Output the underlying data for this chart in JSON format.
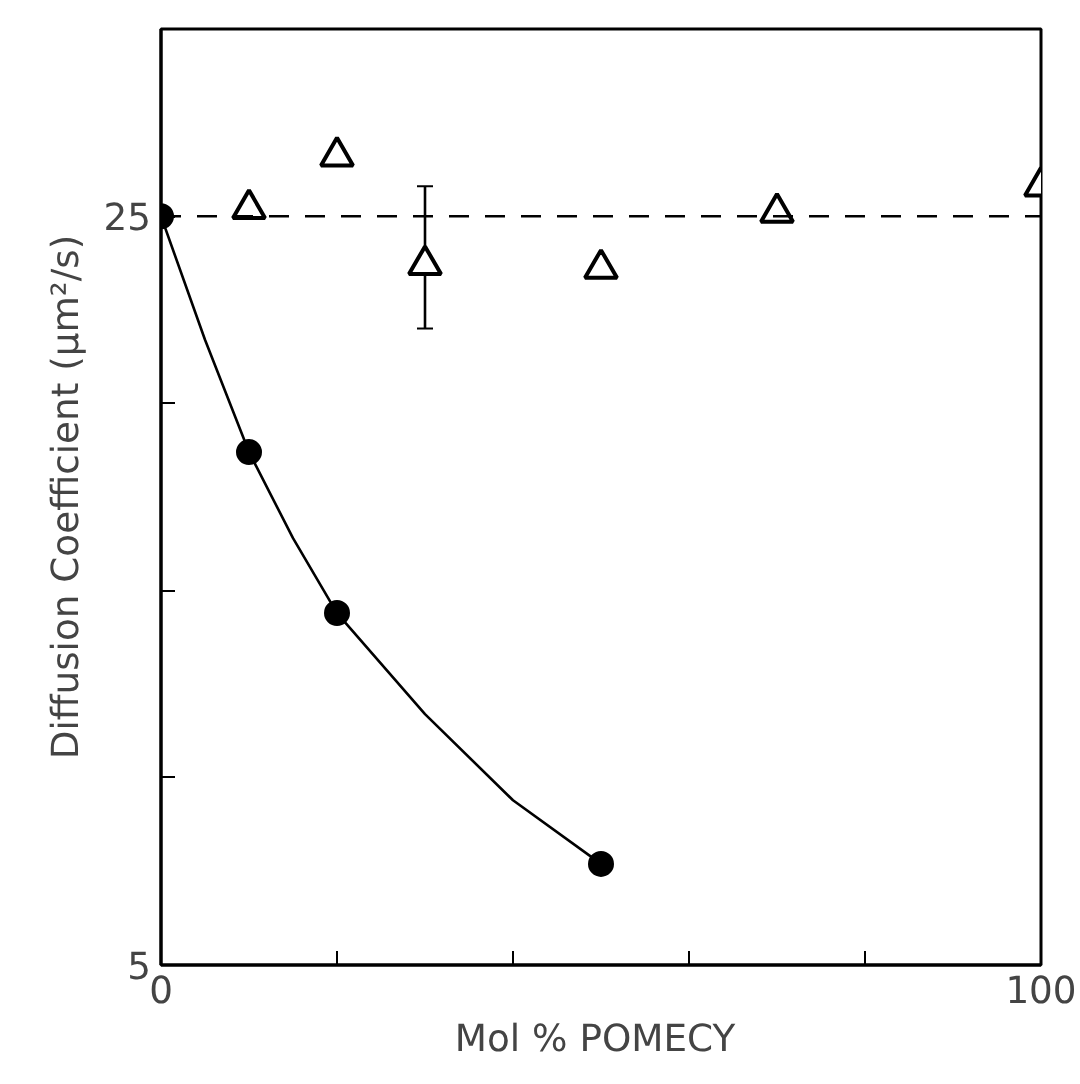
{
  "chart_data": {
    "type": "scatter",
    "xlabel": "Mol %  POMECY",
    "ylabel": "Diffusion Coefficient (μm²/s)",
    "xlim": [
      0,
      100
    ],
    "ylim": [
      5,
      30
    ],
    "xticks": [
      0,
      {
        "value": 20,
        "label": null
      },
      {
        "value": 40,
        "label": null
      },
      {
        "value": 60,
        "label": null
      },
      {
        "value": 80,
        "label": null
      },
      100
    ],
    "yticks": [
      5,
      {
        "value": 10,
        "label": null
      },
      {
        "value": 15,
        "label": null
      },
      {
        "value": 20,
        "label": null
      },
      25
    ],
    "grid": false,
    "series": [
      {
        "type": "line",
        "color": "#000000",
        "marker": "none",
        "line_style": "solid",
        "x": [
          0,
          5,
          10,
          15,
          20,
          30,
          40,
          50
        ],
        "values": [
          25,
          21.7,
          18.7,
          16.4,
          14.4,
          11.7,
          9.4,
          7.7
        ]
      },
      {
        "color": "#000000",
        "marker": "circle",
        "x": [
          0,
          10,
          20,
          50
        ],
        "values": [
          25,
          18.7,
          14.4,
          7.7
        ]
      },
      {
        "color": "#000000",
        "marker": "triangle",
        "x": [
          10,
          20,
          30,
          50,
          70,
          100
        ],
        "values": [
          25.2,
          26.6,
          23.7,
          23.6,
          25.1,
          25.8
        ],
        "errors": [
          null,
          null,
          [
            22.0,
            25.8
          ],
          null,
          null,
          null
        ]
      }
    ],
    "ref_lines": [
      {
        "axis": "y",
        "value": 25,
        "label": null,
        "color": "#000000",
        "line_style": "dashed"
      }
    ]
  }
}
